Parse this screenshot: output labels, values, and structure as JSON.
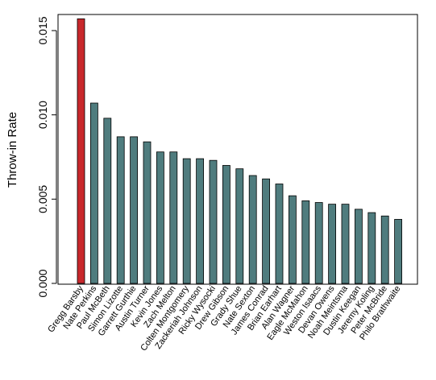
{
  "chart_data": {
    "type": "bar",
    "title": "",
    "xlabel": "",
    "ylabel": "Throw-in Rate",
    "ylim": [
      0,
      0.0165
    ],
    "yticks": [
      0.0,
      0.005,
      0.01,
      0.015
    ],
    "ytick_labels": [
      "0.000",
      "0.005",
      "0.010",
      "0.015"
    ],
    "grid": false,
    "categories": [
      "Gregg Barsby",
      "Nate Perkins",
      "Paul McBeth",
      "Simon Lizotte",
      "Garrett Gurthie",
      "Austin Turner",
      "Kevin Jones",
      "Zach Melton",
      "Colten Montgomery",
      "Zackeriah Johnson",
      "Ricky Wysocki",
      "Drew Gibson",
      "Grady Shue",
      "Nate Sexton",
      "James Conrad",
      "Brian Earhart",
      "Alan Wagner",
      "Eagle McMahon",
      "Weston Isaacs",
      "Devan Owens",
      "Noah Meintsma",
      "Dustin Keegan",
      "Jeremy Koling",
      "Peter McBride",
      "Philo Brathwaite"
    ],
    "values": [
      0.0157,
      0.0107,
      0.0098,
      0.0087,
      0.0087,
      0.0084,
      0.0078,
      0.0078,
      0.0074,
      0.0074,
      0.0073,
      0.007,
      0.0068,
      0.0064,
      0.0062,
      0.0059,
      0.0052,
      0.0049,
      0.0048,
      0.0047,
      0.0047,
      0.0044,
      0.0042,
      0.004,
      0.0038
    ],
    "colors": {
      "highlight": "#c8282c",
      "default": "#4f7c7e",
      "stroke": "#000000"
    },
    "highlight_index": 0
  }
}
